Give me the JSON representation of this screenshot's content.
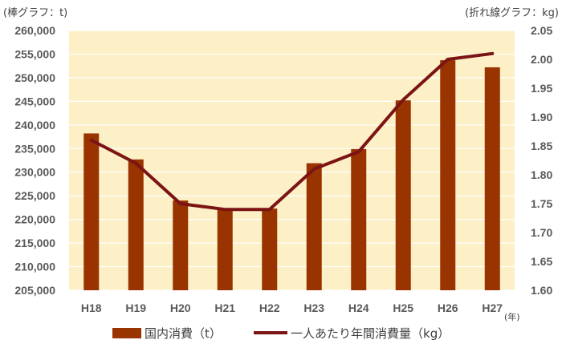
{
  "chart_data": {
    "type": "bar+line",
    "left_axis_unit_label": "(棒グラフ：t)",
    "right_axis_unit_label": "(折れ線グラフ：kg)",
    "x_unit_label": "(年)",
    "categories": [
      "H18",
      "H19",
      "H20",
      "H21",
      "H22",
      "H23",
      "H24",
      "H25",
      "H26",
      "H27"
    ],
    "series": [
      {
        "name": "国内消費（t）",
        "type": "bar",
        "axis": "left",
        "color": "#993300",
        "values": [
          238200,
          232700,
          224000,
          222100,
          222300,
          231900,
          234900,
          245200,
          253700,
          252200
        ]
      },
      {
        "name": "一人あたり年間消費量（kg）",
        "type": "line",
        "axis": "right",
        "color": "#7b1414",
        "values": [
          1.86,
          1.82,
          1.75,
          1.74,
          1.74,
          1.81,
          1.84,
          1.93,
          2.0,
          2.01
        ]
      }
    ],
    "left_axis": {
      "min": 205000,
      "max": 260000,
      "step": 5000,
      "ticks": [
        "205,000",
        "210,000",
        "215,000",
        "220,000",
        "225,000",
        "230,000",
        "235,000",
        "240,000",
        "245,000",
        "250,000",
        "255,000",
        "260,000"
      ]
    },
    "right_axis": {
      "min": 1.6,
      "max": 2.05,
      "step": 0.05,
      "ticks": [
        "1.60",
        "1.65",
        "1.70",
        "1.75",
        "1.80",
        "1.85",
        "1.90",
        "1.95",
        "2.00",
        "2.05"
      ]
    },
    "grid": true,
    "plot_background": "#fdefc6",
    "gridline_color": "#ffffff",
    "legend_position": "bottom"
  }
}
